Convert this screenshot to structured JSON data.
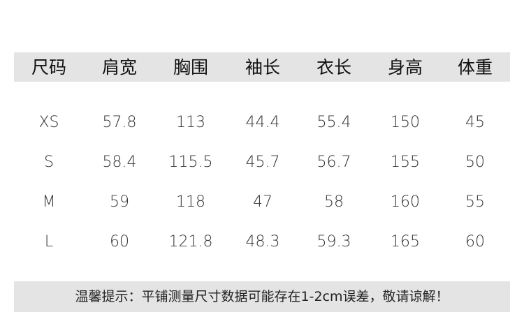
{
  "table": {
    "header": [
      "尺码",
      "肩宽",
      "胸围",
      "袖长",
      "衣长",
      "身高",
      "体重"
    ],
    "rows": [
      [
        "XS",
        "57.8",
        "113",
        "44.4",
        "55.4",
        "150",
        "45"
      ],
      [
        "S",
        "58.4",
        "115.5",
        "45.7",
        "56.7",
        "155",
        "50"
      ],
      [
        "M",
        "59",
        "118",
        "47",
        "58",
        "160",
        "55"
      ],
      [
        "L",
        "60",
        "121.8",
        "48.3",
        "59.3",
        "165",
        "60"
      ]
    ]
  },
  "footer": {
    "note": "温馨提示：平铺测量尺寸数据可能存在1-2cm误差，敬请谅解！"
  }
}
